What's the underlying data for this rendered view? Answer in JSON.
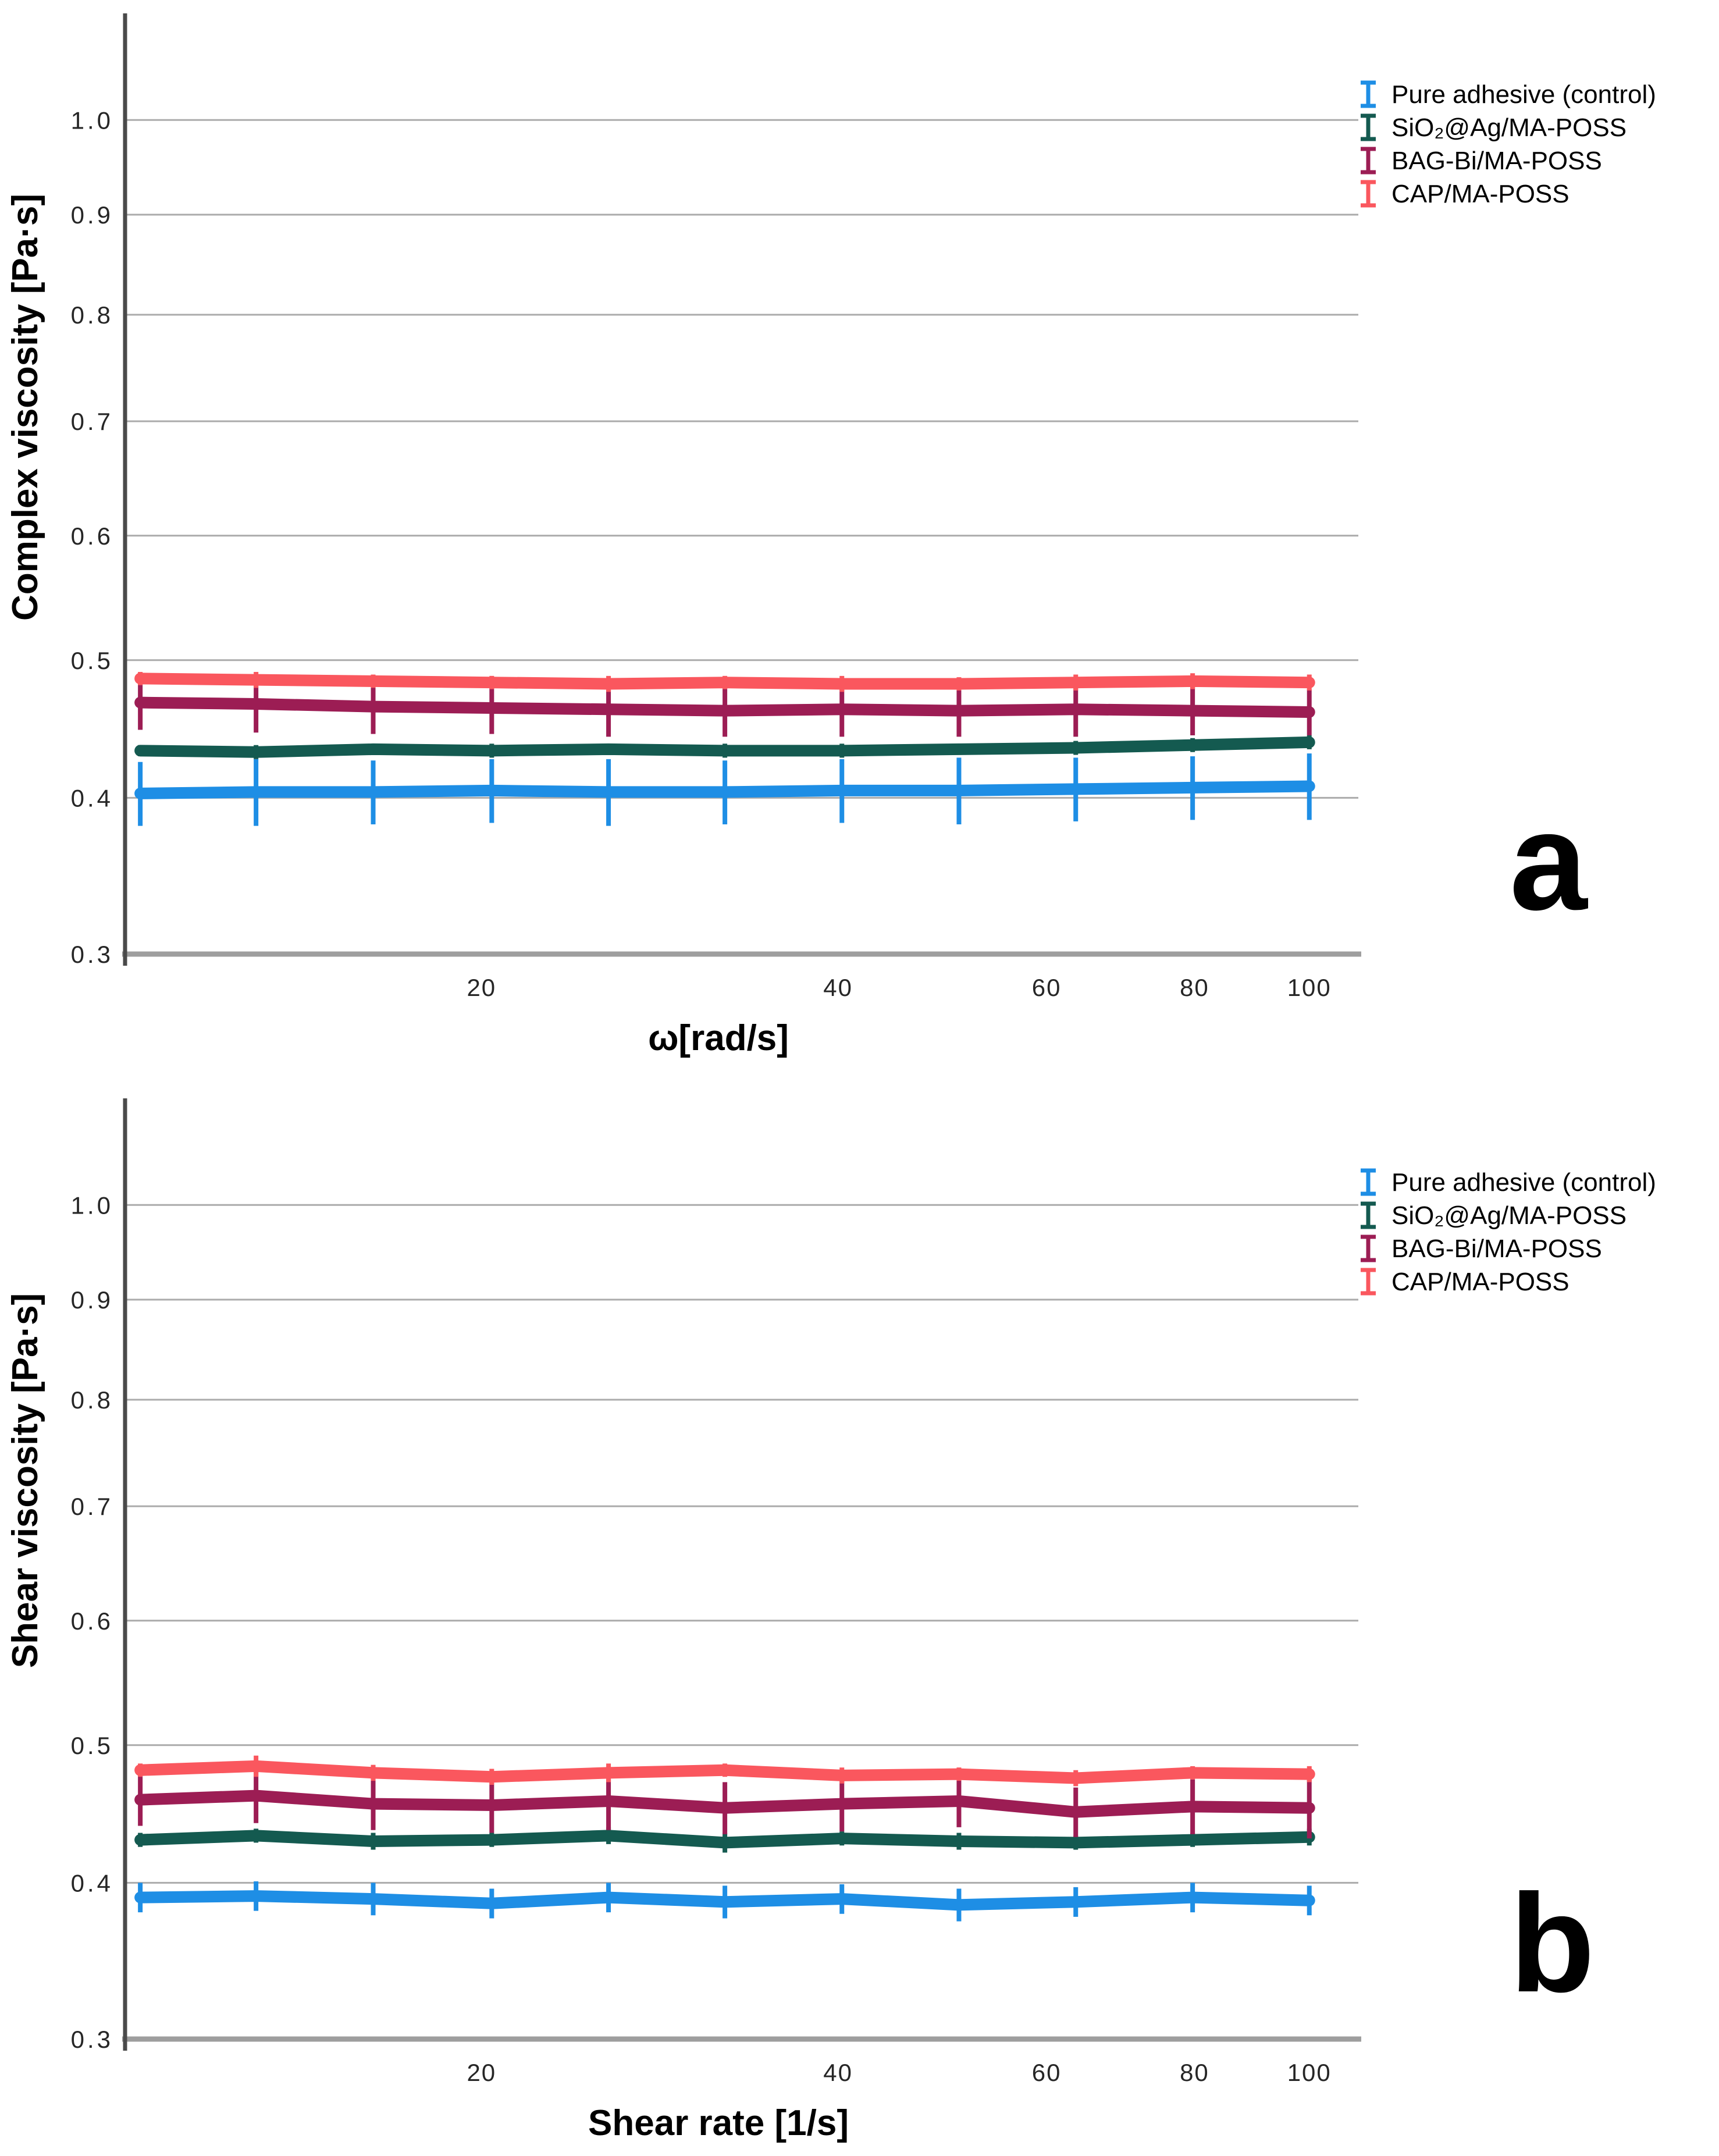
{
  "page": {
    "background": "#ffffff",
    "grid_color": "#ababab",
    "axis_floor_color": "#9e9e9e",
    "axis_line_color": "#4a4a4a",
    "tick_text_color": "#262626"
  },
  "chart_data": [
    {
      "type": "line",
      "panel_label": "a",
      "title": "",
      "xlabel": "ω[rad/s]",
      "ylabel": "Complex viscosity [Pa·s]",
      "x_scale": "log",
      "y_scale": "power-0.5",
      "xlim": [
        10,
        110
      ],
      "ylim": [
        0.3,
        1.08
      ],
      "grid": true,
      "legend_position": "top-right-outside",
      "x_ticks": [
        20,
        40,
        60,
        80,
        100
      ],
      "x_tick_labels": [
        "20",
        "40",
        "60",
        "80",
        "100"
      ],
      "y_ticks": [
        0.3,
        0.4,
        0.5,
        0.6,
        0.7,
        0.8,
        0.9,
        1.0
      ],
      "y_tick_labels": [
        "0.3",
        "0.4",
        "0.5",
        "0.6",
        "0.7",
        "0.8",
        "0.9",
        "1.0"
      ],
      "x": [
        10.3,
        12.9,
        16.2,
        20.4,
        25.6,
        32.1,
        40.3,
        50.6,
        63.5,
        79.7,
        100
      ],
      "series": [
        {
          "name": "Pure adhesive (control)",
          "color": "#1e8ee5",
          "values": [
            0.403,
            0.404,
            0.404,
            0.405,
            0.404,
            0.404,
            0.405,
            0.405,
            0.406,
            0.407,
            0.408
          ],
          "error": [
            0.022,
            0.023,
            0.022,
            0.022,
            0.023,
            0.022,
            0.022,
            0.023,
            0.022,
            0.022,
            0.023
          ]
        },
        {
          "name": "SiO₂@Ag/MA-POSS",
          "color": "#145a50",
          "values": [
            0.433,
            0.432,
            0.434,
            0.433,
            0.434,
            0.433,
            0.433,
            0.434,
            0.435,
            0.437,
            0.439
          ],
          "error": [
            0.004,
            0.005,
            0.004,
            0.005,
            0.004,
            0.005,
            0.005,
            0.004,
            0.005,
            0.005,
            0.005
          ]
        },
        {
          "name": "BAG-Bi/MA-POSS",
          "color": "#9c1d54",
          "values": [
            0.468,
            0.467,
            0.465,
            0.464,
            0.463,
            0.462,
            0.463,
            0.462,
            0.463,
            0.462,
            0.461
          ],
          "error": [
            0.02,
            0.021,
            0.02,
            0.019,
            0.02,
            0.019,
            0.02,
            0.019,
            0.02,
            0.018,
            0.017
          ]
        },
        {
          "name": "CAP/MA-POSS",
          "color": "#fa575e",
          "values": [
            0.486,
            0.485,
            0.484,
            0.483,
            0.482,
            0.483,
            0.482,
            0.482,
            0.483,
            0.484,
            0.483
          ],
          "error": [
            0.005,
            0.006,
            0.005,
            0.005,
            0.006,
            0.005,
            0.006,
            0.005,
            0.006,
            0.006,
            0.006
          ]
        }
      ]
    },
    {
      "type": "line",
      "panel_label": "b",
      "title": "",
      "xlabel": "Shear rate [1/s]",
      "ylabel": "Shear viscosity [Pa·s]",
      "x_scale": "log",
      "y_scale": "power-0.5",
      "xlim": [
        10,
        110
      ],
      "ylim": [
        0.3,
        1.08
      ],
      "grid": true,
      "legend_position": "top-right-outside",
      "x_ticks": [
        20,
        40,
        60,
        80,
        100
      ],
      "x_tick_labels": [
        "20",
        "40",
        "60",
        "80",
        "100"
      ],
      "y_ticks": [
        0.3,
        0.4,
        0.5,
        0.6,
        0.7,
        0.8,
        0.9,
        1.0
      ],
      "y_tick_labels": [
        "0.3",
        "0.4",
        "0.5",
        "0.6",
        "0.7",
        "0.8",
        "0.9",
        "1.0"
      ],
      "x": [
        10.3,
        12.9,
        16.2,
        20.4,
        25.6,
        32.1,
        40.3,
        50.6,
        63.5,
        79.7,
        100
      ],
      "series": [
        {
          "name": "Pure adhesive (control)",
          "color": "#1e8ee5",
          "values": [
            0.39,
            0.391,
            0.389,
            0.386,
            0.39,
            0.387,
            0.389,
            0.385,
            0.387,
            0.39,
            0.388
          ],
          "error": [
            0.01,
            0.01,
            0.011,
            0.01,
            0.01,
            0.011,
            0.01,
            0.011,
            0.01,
            0.01,
            0.01
          ]
        },
        {
          "name": "SiO₂@Ag/MA-POSS",
          "color": "#145a50",
          "values": [
            0.43,
            0.433,
            0.429,
            0.43,
            0.433,
            0.428,
            0.431,
            0.429,
            0.428,
            0.43,
            0.432
          ],
          "error": [
            0.005,
            0.005,
            0.006,
            0.005,
            0.006,
            0.007,
            0.005,
            0.006,
            0.005,
            0.005,
            0.006
          ]
        },
        {
          "name": "BAG-Bi/MA-POSS",
          "color": "#9c1d54",
          "values": [
            0.459,
            0.462,
            0.456,
            0.455,
            0.458,
            0.453,
            0.456,
            0.458,
            0.45,
            0.454,
            0.453
          ],
          "error": [
            0.019,
            0.02,
            0.019,
            0.02,
            0.021,
            0.019,
            0.02,
            0.019,
            0.018,
            0.02,
            0.022
          ]
        },
        {
          "name": "CAP/MA-POSS",
          "color": "#fa575e",
          "values": [
            0.481,
            0.484,
            0.479,
            0.476,
            0.479,
            0.481,
            0.477,
            0.478,
            0.475,
            0.479,
            0.478
          ],
          "error": [
            0.005,
            0.008,
            0.006,
            0.006,
            0.007,
            0.005,
            0.006,
            0.005,
            0.006,
            0.005,
            0.006
          ]
        }
      ]
    }
  ]
}
